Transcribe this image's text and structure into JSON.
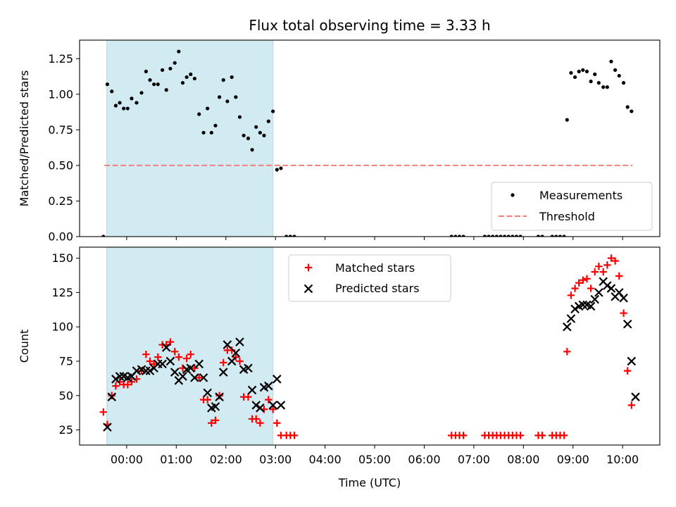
{
  "chart_data": [
    {
      "type": "scatter",
      "panel": "top",
      "title": "Flux total observing time = 3.33 h",
      "xlabel": "",
      "ylabel": "Matched/Predicted stars",
      "xlim": [
        -0.95,
        10.75
      ],
      "ylim": [
        0,
        1.38
      ],
      "yticks": [
        0,
        0.25,
        0.5,
        0.75,
        1.0,
        1.25
      ],
      "ytick_labels": [
        "0.00",
        "0.25",
        "0.50",
        "0.75",
        "1.00",
        "1.25"
      ],
      "shaded_interval": {
        "from": -0.4,
        "to": 2.95,
        "color": "#add8e6"
      },
      "threshold": {
        "name": "Threshold",
        "y": 0.5,
        "from": -0.45,
        "to": 10.2,
        "color": "#f08080"
      },
      "legend": {
        "position": "lower right",
        "entries": [
          "Measurements",
          "Threshold"
        ]
      },
      "series": [
        {
          "name": "Measurements",
          "marker": "dot",
          "color": "#000000",
          "points": [
            [
              -0.47,
              0.0
            ],
            [
              -0.39,
              1.07
            ],
            [
              -0.3,
              1.02
            ],
            [
              -0.22,
              0.92
            ],
            [
              -0.14,
              0.94
            ],
            [
              -0.06,
              0.9
            ],
            [
              0.02,
              0.9
            ],
            [
              0.1,
              0.97
            ],
            [
              0.2,
              0.94
            ],
            [
              0.3,
              1.01
            ],
            [
              0.39,
              1.16
            ],
            [
              0.47,
              1.1
            ],
            [
              0.55,
              1.07
            ],
            [
              0.63,
              1.07
            ],
            [
              0.72,
              1.17
            ],
            [
              0.8,
              1.03
            ],
            [
              0.88,
              1.18
            ],
            [
              0.97,
              1.22
            ],
            [
              1.05,
              1.3
            ],
            [
              1.13,
              1.08
            ],
            [
              1.21,
              1.12
            ],
            [
              1.29,
              1.14
            ],
            [
              1.37,
              1.11
            ],
            [
              1.46,
              0.86
            ],
            [
              1.55,
              0.73
            ],
            [
              1.63,
              0.9
            ],
            [
              1.71,
              0.73
            ],
            [
              1.79,
              0.78
            ],
            [
              1.87,
              0.98
            ],
            [
              1.95,
              1.1
            ],
            [
              2.03,
              0.95
            ],
            [
              2.12,
              1.12
            ],
            [
              2.2,
              0.98
            ],
            [
              2.28,
              0.84
            ],
            [
              2.36,
              0.71
            ],
            [
              2.45,
              0.69
            ],
            [
              2.53,
              0.61
            ],
            [
              2.61,
              0.77
            ],
            [
              2.69,
              0.73
            ],
            [
              2.77,
              0.71
            ],
            [
              2.86,
              0.81
            ],
            [
              2.95,
              0.88
            ],
            [
              3.03,
              0.47
            ],
            [
              3.11,
              0.48
            ],
            [
              3.22,
              0.0
            ],
            [
              3.3,
              0.0
            ],
            [
              3.38,
              0.0
            ],
            [
              6.55,
              0.0
            ],
            [
              6.63,
              0.0
            ],
            [
              6.71,
              0.0
            ],
            [
              6.79,
              0.0
            ],
            [
              7.22,
              0.0
            ],
            [
              7.3,
              0.0
            ],
            [
              7.38,
              0.0
            ],
            [
              7.46,
              0.0
            ],
            [
              7.54,
              0.0
            ],
            [
              7.62,
              0.0
            ],
            [
              7.7,
              0.0
            ],
            [
              7.78,
              0.0
            ],
            [
              7.86,
              0.0
            ],
            [
              7.94,
              0.0
            ],
            [
              8.3,
              0.0
            ],
            [
              8.38,
              0.0
            ],
            [
              8.58,
              0.0
            ],
            [
              8.66,
              0.0
            ],
            [
              8.74,
              0.0
            ],
            [
              8.82,
              0.0
            ],
            [
              8.88,
              0.82
            ],
            [
              8.96,
              1.15
            ],
            [
              9.04,
              1.12
            ],
            [
              9.12,
              1.16
            ],
            [
              9.2,
              1.17
            ],
            [
              9.28,
              1.16
            ],
            [
              9.36,
              1.09
            ],
            [
              9.44,
              1.14
            ],
            [
              9.52,
              1.08
            ],
            [
              9.61,
              1.05
            ],
            [
              9.69,
              1.05
            ],
            [
              9.77,
              1.23
            ],
            [
              9.85,
              1.17
            ],
            [
              9.93,
              1.13
            ],
            [
              10.02,
              1.08
            ],
            [
              10.1,
              0.91
            ],
            [
              10.18,
              0.88
            ]
          ]
        }
      ]
    },
    {
      "type": "scatter",
      "panel": "bottom",
      "title": "",
      "xlabel": "Time (UTC)",
      "ylabel": "Count",
      "xlim": [
        -0.95,
        10.75
      ],
      "ylim": [
        14,
        158
      ],
      "xticks": [
        0,
        1,
        2,
        3,
        4,
        5,
        6,
        7,
        8,
        9,
        10
      ],
      "xtick_labels": [
        "00:00",
        "01:00",
        "02:00",
        "03:00",
        "04:00",
        "05:00",
        "06:00",
        "07:00",
        "08:00",
        "09:00",
        "10:00"
      ],
      "yticks": [
        25,
        50,
        75,
        100,
        125,
        150
      ],
      "ytick_labels": [
        "25",
        "50",
        "75",
        "100",
        "125",
        "150"
      ],
      "shaded_interval": {
        "from": -0.4,
        "to": 2.95,
        "color": "#add8e6"
      },
      "legend": {
        "position": "upper center",
        "entries": [
          "Matched stars",
          "Predicted stars"
        ]
      },
      "series": [
        {
          "name": "Matched stars",
          "marker": "plus",
          "color": "#ff0000",
          "points": [
            [
              -0.47,
              38
            ],
            [
              -0.39,
              29
            ],
            [
              -0.3,
              50
            ],
            [
              -0.22,
              57
            ],
            [
              -0.14,
              60
            ],
            [
              -0.06,
              58
            ],
            [
              0.02,
              58
            ],
            [
              0.1,
              60
            ],
            [
              0.2,
              62
            ],
            [
              0.3,
              68
            ],
            [
              0.39,
              80
            ],
            [
              0.47,
              75
            ],
            [
              0.55,
              73
            ],
            [
              0.63,
              78
            ],
            [
              0.72,
              87
            ],
            [
              0.8,
              87
            ],
            [
              0.88,
              89
            ],
            [
              0.97,
              82
            ],
            [
              1.05,
              78
            ],
            [
              1.13,
              70
            ],
            [
              1.21,
              77
            ],
            [
              1.29,
              80
            ],
            [
              1.37,
              70
            ],
            [
              1.46,
              63
            ],
            [
              1.55,
              47
            ],
            [
              1.63,
              47
            ],
            [
              1.71,
              30
            ],
            [
              1.79,
              32
            ],
            [
              1.87,
              50
            ],
            [
              1.95,
              74
            ],
            [
              2.03,
              83
            ],
            [
              2.12,
              83
            ],
            [
              2.2,
              78
            ],
            [
              2.28,
              75
            ],
            [
              2.36,
              49
            ],
            [
              2.45,
              49
            ],
            [
              2.53,
              33
            ],
            [
              2.61,
              33
            ],
            [
              2.69,
              30
            ],
            [
              2.77,
              40
            ],
            [
              2.86,
              47
            ],
            [
              2.95,
              40
            ],
            [
              3.03,
              30
            ],
            [
              3.11,
              21
            ],
            [
              3.22,
              21
            ],
            [
              3.3,
              21
            ],
            [
              3.38,
              21
            ],
            [
              6.55,
              21
            ],
            [
              6.63,
              21
            ],
            [
              6.71,
              21
            ],
            [
              6.79,
              21
            ],
            [
              7.22,
              21
            ],
            [
              7.3,
              21
            ],
            [
              7.38,
              21
            ],
            [
              7.46,
              21
            ],
            [
              7.54,
              21
            ],
            [
              7.62,
              21
            ],
            [
              7.7,
              21
            ],
            [
              7.78,
              21
            ],
            [
              7.86,
              21
            ],
            [
              7.94,
              21
            ],
            [
              8.3,
              21
            ],
            [
              8.38,
              21
            ],
            [
              8.58,
              21
            ],
            [
              8.66,
              21
            ],
            [
              8.74,
              21
            ],
            [
              8.82,
              21
            ],
            [
              8.88,
              82
            ],
            [
              8.96,
              123
            ],
            [
              9.04,
              128
            ],
            [
              9.12,
              132
            ],
            [
              9.2,
              134
            ],
            [
              9.28,
              135
            ],
            [
              9.36,
              128
            ],
            [
              9.44,
              140
            ],
            [
              9.52,
              144
            ],
            [
              9.61,
              140
            ],
            [
              9.69,
              145
            ],
            [
              9.77,
              150
            ],
            [
              9.85,
              148
            ],
            [
              9.93,
              137
            ],
            [
              10.02,
              110
            ],
            [
              10.1,
              68
            ],
            [
              10.18,
              43
            ]
          ]
        },
        {
          "name": "Predicted stars",
          "marker": "x",
          "color": "#000000",
          "points": [
            [
              -0.39,
              27
            ],
            [
              -0.3,
              49
            ],
            [
              -0.22,
              62
            ],
            [
              -0.14,
              64
            ],
            [
              -0.06,
              64
            ],
            [
              0.02,
              63
            ],
            [
              0.1,
              64
            ],
            [
              0.2,
              68
            ],
            [
              0.3,
              69
            ],
            [
              0.39,
              68
            ],
            [
              0.47,
              68
            ],
            [
              0.55,
              70
            ],
            [
              0.63,
              73
            ],
            [
              0.72,
              73
            ],
            [
              0.8,
              85
            ],
            [
              0.88,
              75
            ],
            [
              0.97,
              67
            ],
            [
              1.05,
              61
            ],
            [
              1.13,
              64
            ],
            [
              1.21,
              69
            ],
            [
              1.29,
              70
            ],
            [
              1.37,
              63
            ],
            [
              1.46,
              73
            ],
            [
              1.55,
              63
            ],
            [
              1.63,
              52
            ],
            [
              1.71,
              41
            ],
            [
              1.79,
              42
            ],
            [
              1.87,
              49
            ],
            [
              1.95,
              67
            ],
            [
              2.03,
              87
            ],
            [
              2.12,
              75
            ],
            [
              2.2,
              81
            ],
            [
              2.28,
              89
            ],
            [
              2.36,
              69
            ],
            [
              2.45,
              70
            ],
            [
              2.53,
              54
            ],
            [
              2.61,
              43
            ],
            [
              2.69,
              41
            ],
            [
              2.77,
              56
            ],
            [
              2.86,
              57
            ],
            [
              2.95,
              43
            ],
            [
              3.03,
              62
            ],
            [
              3.11,
              43
            ],
            [
              8.88,
              100
            ],
            [
              8.96,
              106
            ],
            [
              9.04,
              113
            ],
            [
              9.12,
              115
            ],
            [
              9.2,
              116
            ],
            [
              9.28,
              116
            ],
            [
              9.36,
              115
            ],
            [
              9.44,
              120
            ],
            [
              9.52,
              125
            ],
            [
              9.61,
              133
            ],
            [
              9.69,
              130
            ],
            [
              9.77,
              128
            ],
            [
              9.85,
              122
            ],
            [
              9.93,
              125
            ],
            [
              10.02,
              121
            ],
            [
              10.1,
              102
            ],
            [
              10.18,
              75
            ],
            [
              10.26,
              49
            ]
          ]
        }
      ]
    }
  ]
}
